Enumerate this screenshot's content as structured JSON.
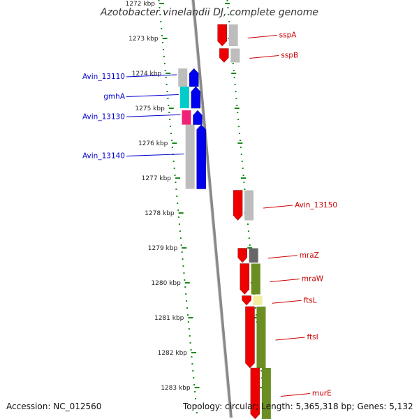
{
  "title": "Azotobacter vinelandii DJ, complete genome",
  "accession": "Accession: NC_012560",
  "topology": "Topology: circular; Length: 5,365,318 bp; Genes: 5,132",
  "colors": {
    "backbone": "#888888",
    "tick": "#1a8a1a",
    "forward_label": "#0000cc",
    "reverse_label": "#cc0000",
    "red": "#ee0000",
    "blue": "#0000ee",
    "gray": "#bdbdbd",
    "dark_gray": "#666666",
    "cyan": "#00cccc",
    "magenta": "#ee2277",
    "olive": "#6b8e23",
    "yellow": "#f2eea0"
  },
  "ticks": [
    {
      "kbp": 1272,
      "label": "1272 kbp"
    },
    {
      "kbp": 1273,
      "label": "1273 kbp"
    },
    {
      "kbp": 1274,
      "label": "1274 kbp"
    },
    {
      "kbp": 1275,
      "label": "1275 kbp"
    },
    {
      "kbp": 1276,
      "label": "1276 kbp"
    },
    {
      "kbp": 1277,
      "label": "1277 kbp"
    },
    {
      "kbp": 1278,
      "label": "1278 kbp"
    },
    {
      "kbp": 1279,
      "label": "1279 kbp"
    },
    {
      "kbp": 1280,
      "label": "1280 kbp"
    },
    {
      "kbp": 1281,
      "label": "1281 kbp"
    },
    {
      "kbp": 1282,
      "label": "1282 kbp"
    },
    {
      "kbp": 1283,
      "label": "1283 kbp"
    }
  ],
  "genes": [
    {
      "name": "sspA",
      "strand": "reverse",
      "start_kbp": 1272.6,
      "end_kbp": 1273.22,
      "color": "red",
      "cog_color": "gray"
    },
    {
      "name": "sspB",
      "strand": "reverse",
      "start_kbp": 1273.29,
      "end_kbp": 1273.69,
      "color": "red",
      "cog_color": "gray"
    },
    {
      "name": "Avin_13110",
      "strand": "forward",
      "start_kbp": 1273.86,
      "end_kbp": 1274.38,
      "color": "blue",
      "cog_color": "gray"
    },
    {
      "name": "gmhA",
      "strand": "forward",
      "start_kbp": 1274.38,
      "end_kbp": 1275.0,
      "color": "blue",
      "cog_color": "cyan"
    },
    {
      "name": "Avin_13130",
      "strand": "forward",
      "start_kbp": 1275.06,
      "end_kbp": 1275.47,
      "color": "blue",
      "cog_color": "magenta"
    },
    {
      "name": "Avin_13140",
      "strand": "forward",
      "start_kbp": 1275.47,
      "end_kbp": 1277.31,
      "color": "blue",
      "cog_color": "gray"
    },
    {
      "name": "Avin_13150",
      "strand": "reverse",
      "start_kbp": 1277.35,
      "end_kbp": 1278.21,
      "color": "red",
      "cog_color": "gray"
    },
    {
      "name": "mraZ",
      "strand": "reverse",
      "start_kbp": 1279.01,
      "end_kbp": 1279.42,
      "color": "red",
      "cog_color": "dark_gray"
    },
    {
      "name": "mraW",
      "strand": "reverse",
      "start_kbp": 1279.45,
      "end_kbp": 1280.33,
      "color": "red",
      "cog_color": "olive"
    },
    {
      "name": "ftsL",
      "strand": "reverse",
      "start_kbp": 1280.37,
      "end_kbp": 1280.64,
      "color": "red",
      "cog_color": "yellow"
    },
    {
      "name": "ftsI",
      "strand": "reverse",
      "start_kbp": 1280.68,
      "end_kbp": 1282.44,
      "color": "red",
      "cog_color": "olive"
    },
    {
      "name": "murE",
      "strand": "reverse",
      "start_kbp": 1282.44,
      "end_kbp": 1283.9,
      "color": "red",
      "cog_color": "olive"
    }
  ]
}
